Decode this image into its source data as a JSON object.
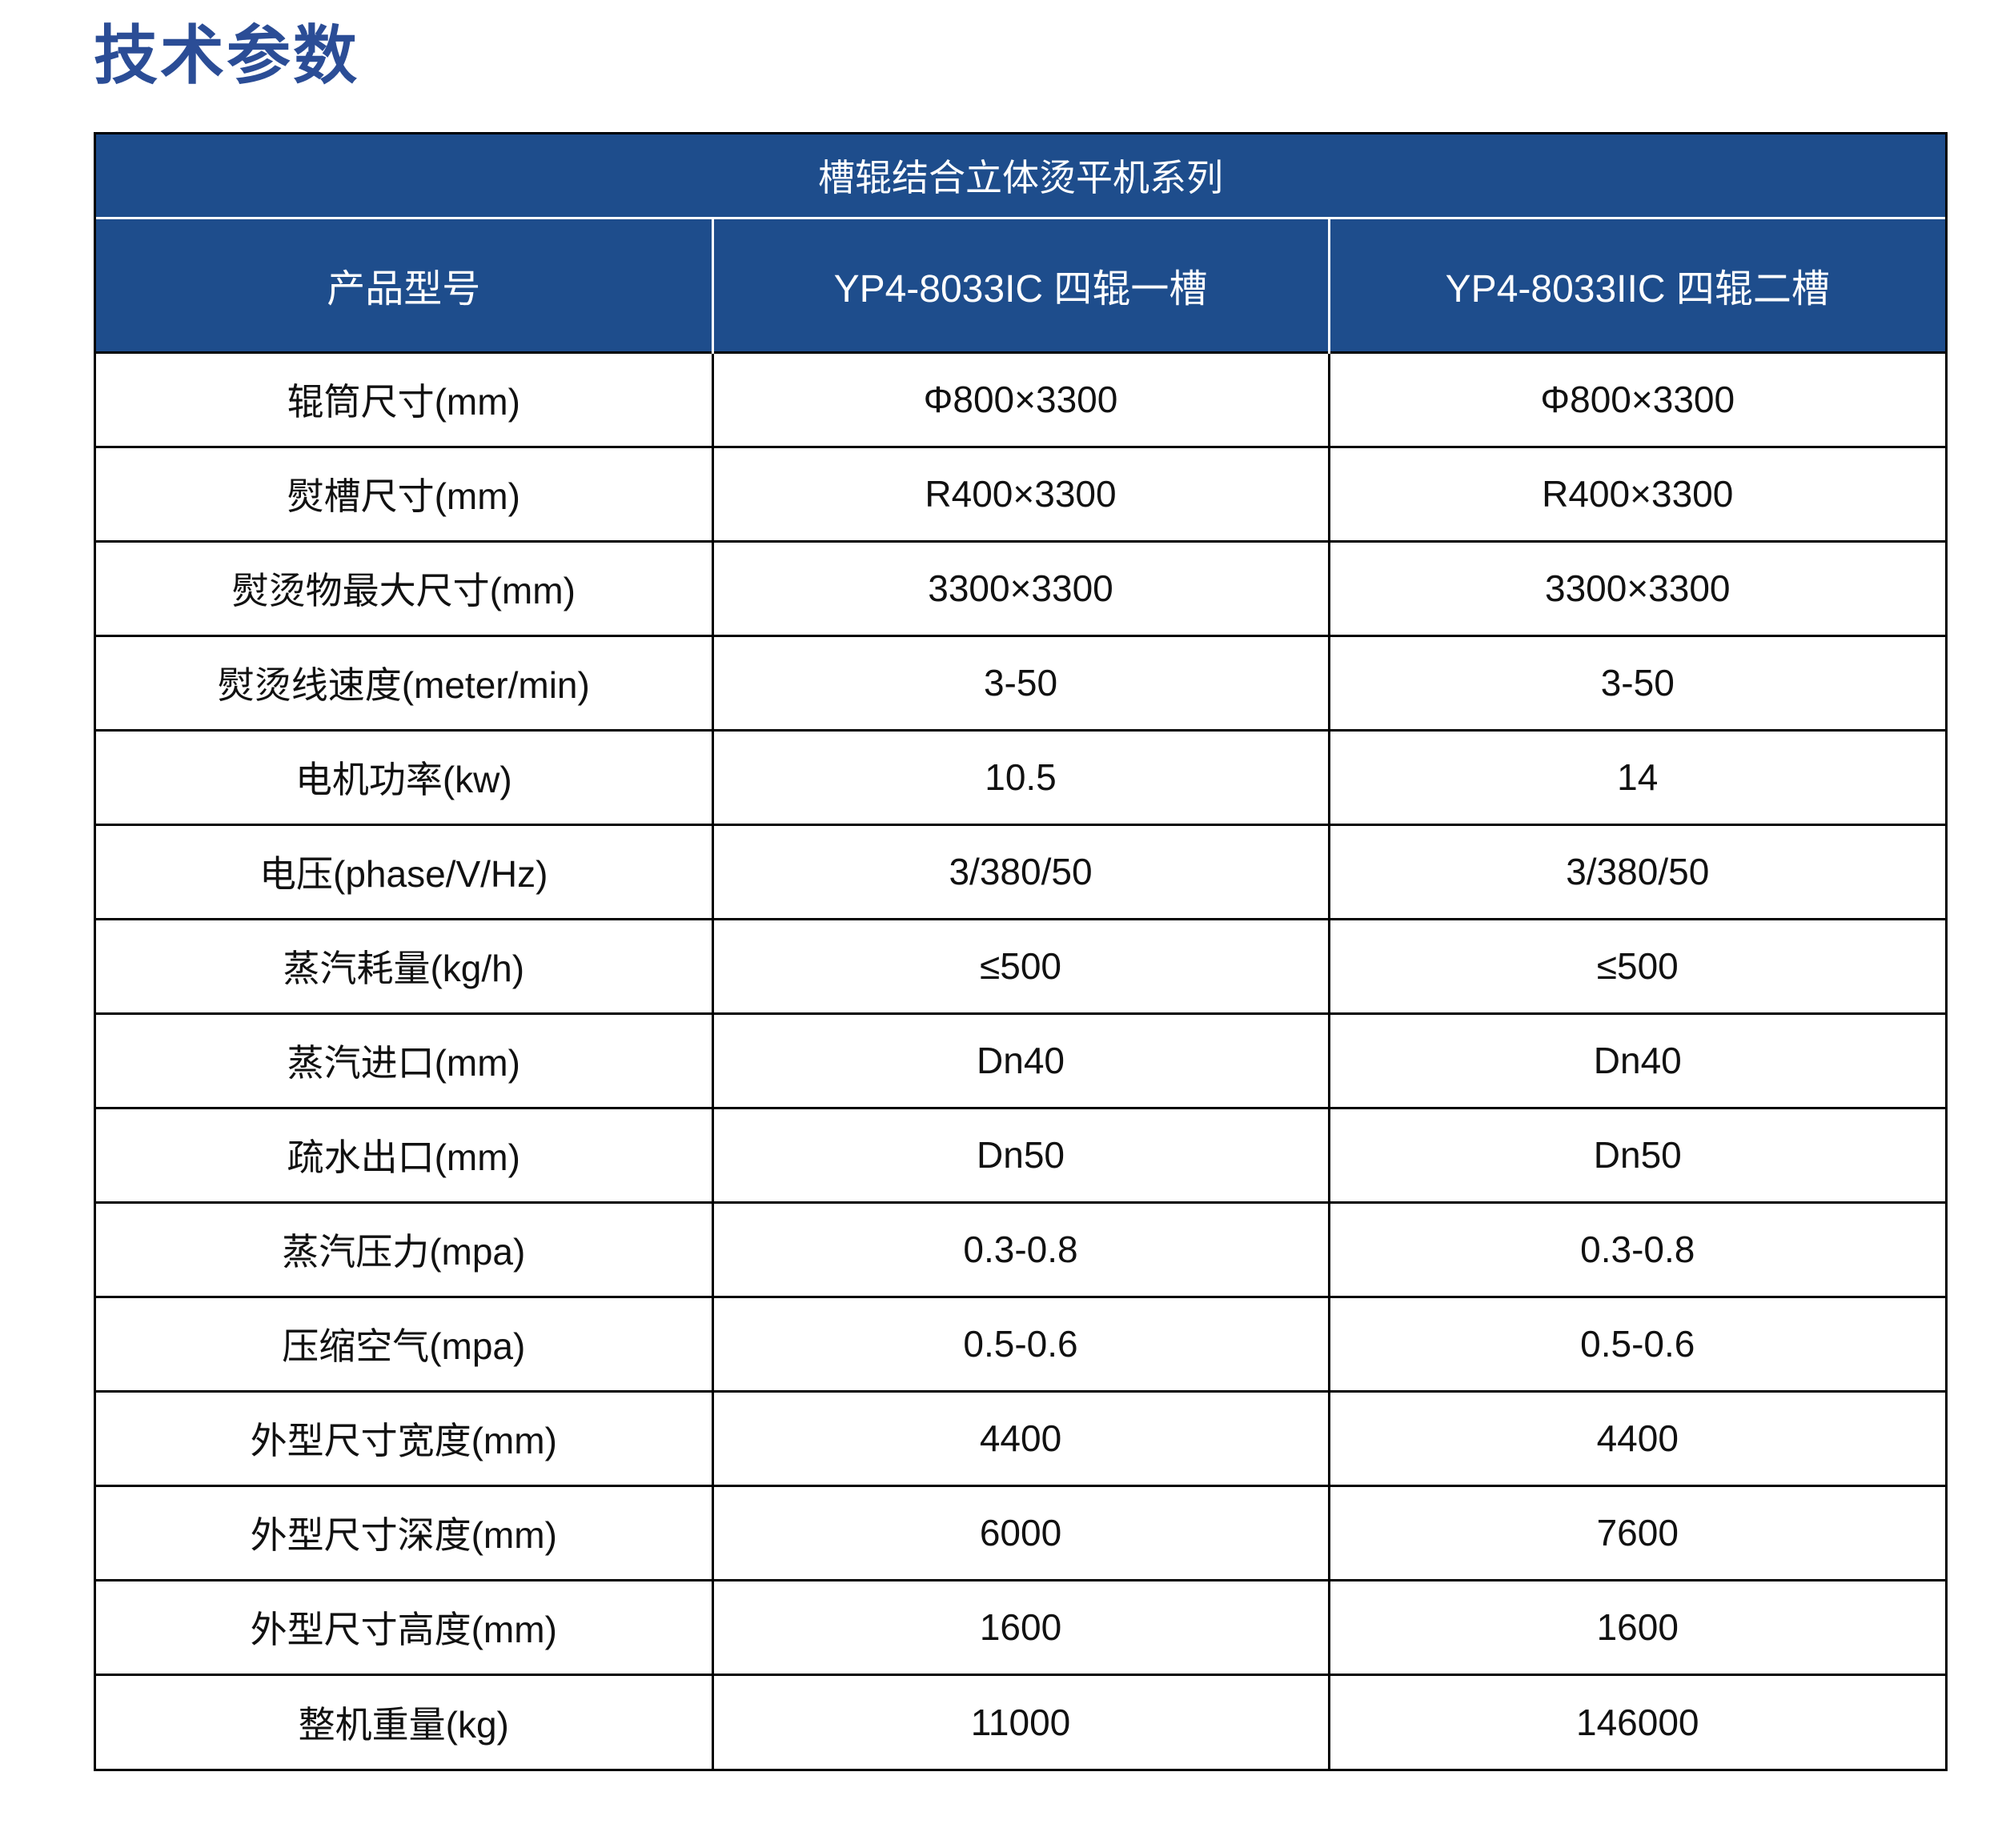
{
  "page": {
    "title": "技术参数"
  },
  "table": {
    "series_title": "槽辊结合立体烫平机系列",
    "columns": [
      "产品型号",
      "YP4-8033IC 四辊一槽",
      "YP4-8033IIC 四辊二槽"
    ],
    "rows": [
      {
        "label": "辊筒尺寸(mm)",
        "model1": "Φ800×3300",
        "model2": "Φ800×3300"
      },
      {
        "label": "熨槽尺寸(mm)",
        "model1": "R400×3300",
        "model2": "R400×3300"
      },
      {
        "label": "熨烫物最大尺寸(mm)",
        "model1": "3300×3300",
        "model2": "3300×3300"
      },
      {
        "label": "熨烫线速度(meter/min)",
        "model1": "3-50",
        "model2": "3-50"
      },
      {
        "label": "电机功率(kw)",
        "model1": "10.5",
        "model2": "14"
      },
      {
        "label": "电压(phase/V/Hz)",
        "model1": "3/380/50",
        "model2": "3/380/50"
      },
      {
        "label": "蒸汽耗量(kg/h)",
        "model1": "≤500",
        "model2": "≤500"
      },
      {
        "label": "蒸汽进口(mm)",
        "model1": "Dn40",
        "model2": "Dn40"
      },
      {
        "label": "疏水出口(mm)",
        "model1": "Dn50",
        "model2": "Dn50"
      },
      {
        "label": "蒸汽压力(mpa)",
        "model1": "0.3-0.8",
        "model2": "0.3-0.8"
      },
      {
        "label": "压缩空气(mpa)",
        "model1": "0.5-0.6",
        "model2": "0.5-0.6"
      },
      {
        "label": "外型尺寸宽度(mm)",
        "model1": "4400",
        "model2": "4400"
      },
      {
        "label": "外型尺寸深度(mm)",
        "model1": "6000",
        "model2": "7600"
      },
      {
        "label": "外型尺寸高度(mm)",
        "model1": "1600",
        "model2": "1600"
      },
      {
        "label": "整机重量(kg)",
        "model1": "11000",
        "model2": "146000"
      }
    ]
  },
  "colors": {
    "header_bg": "#1e4d8c",
    "title_color": "#2b4d96",
    "grid_color": "#000000",
    "header_text": "#ffffff",
    "body_text": "#111111"
  }
}
